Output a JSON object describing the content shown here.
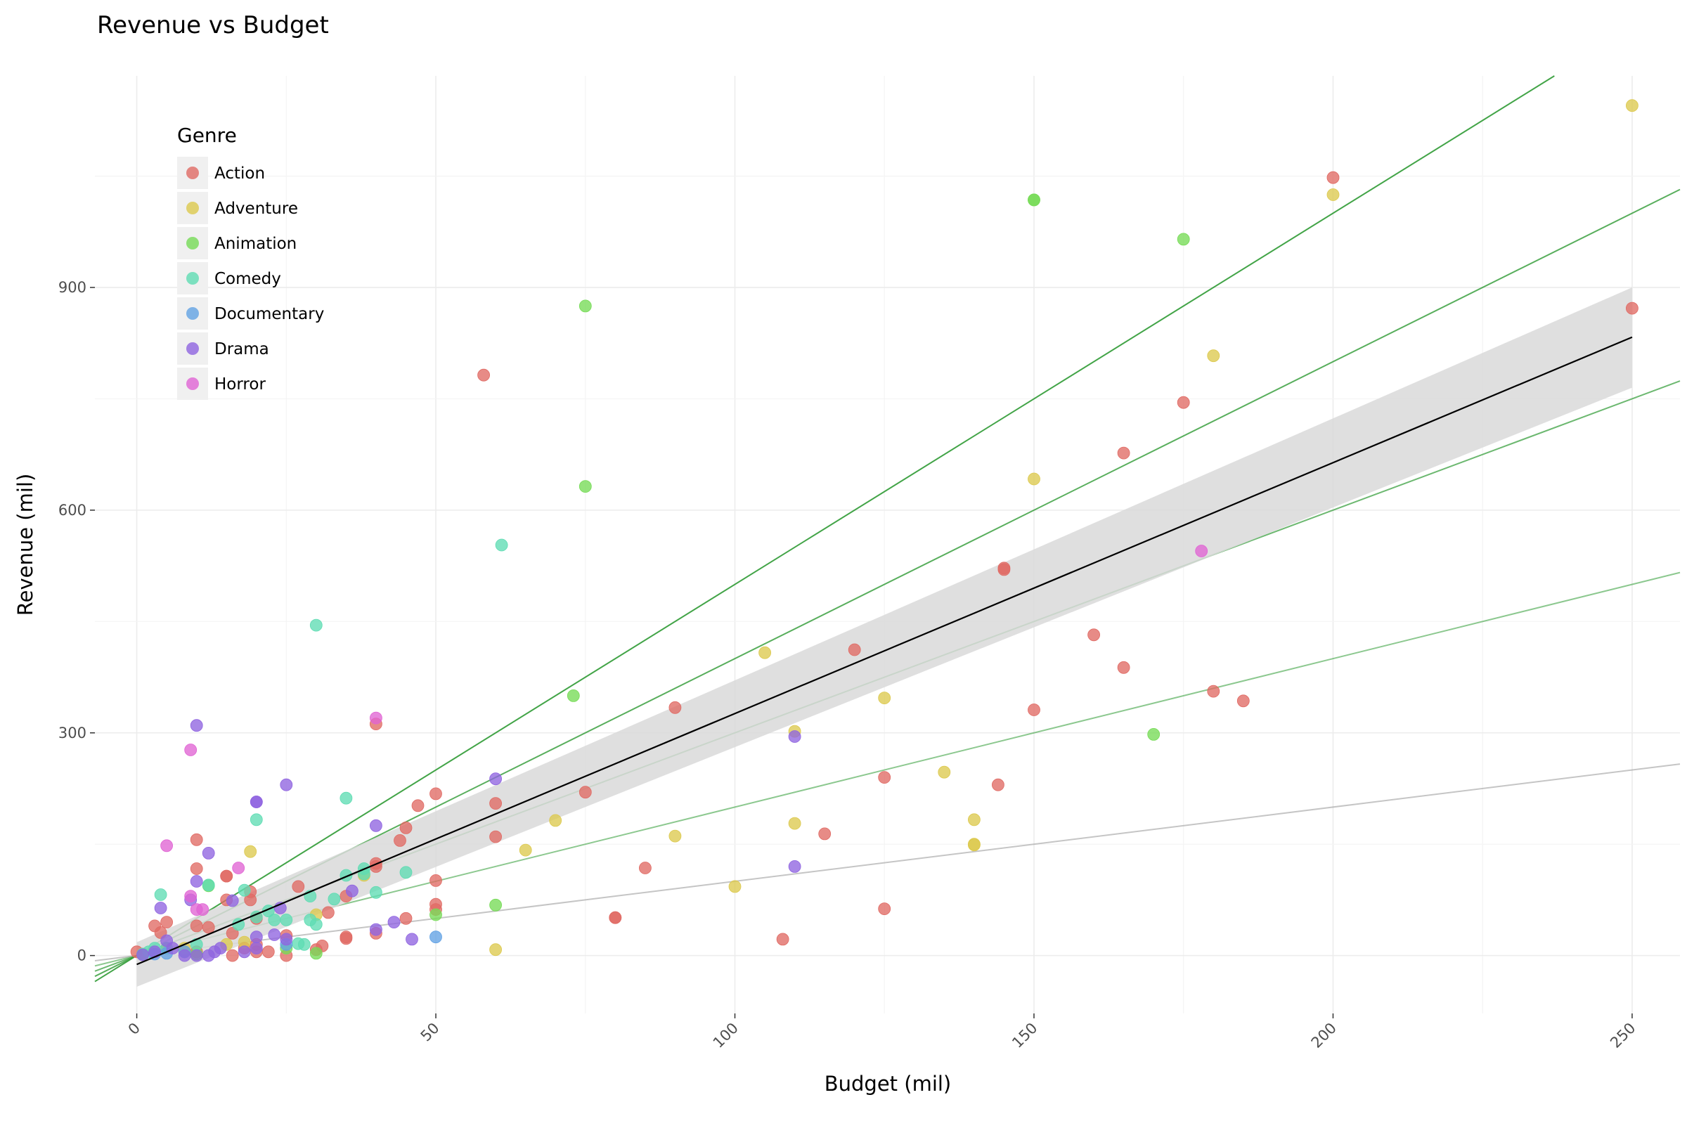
{
  "chart_data": {
    "type": "scatter",
    "title": "Revenue vs Budget",
    "xlabel": "Budget (mil)",
    "ylabel": "Revenue (mil)",
    "xlim": [
      -7,
      258
    ],
    "ylim": [
      -78,
      1185
    ],
    "x_ticks": [
      0,
      50,
      100,
      150,
      200,
      250
    ],
    "y_ticks": [
      0,
      300,
      600,
      900
    ],
    "grid": true,
    "legend": {
      "title": "Genre",
      "position": "top-left"
    },
    "colors": {
      "Action": "#e06a64",
      "Adventure": "#dcc94e",
      "Animation": "#76db56",
      "Comedy": "#5fdcb3",
      "Documentary": "#62a2e4",
      "Drama": "#8f64e0",
      "Horror": "#e064d4",
      "regression_line": "#000000",
      "confidence_band": "#d9d9d9",
      "reference_line_green": "#2e9a33",
      "reference_line_gray": "#bdbdbd"
    },
    "regression": {
      "x_range": [
        0,
        250
      ],
      "slope": 3.38,
      "intercept": -12,
      "band_at_start": [
        -42,
        18
      ],
      "band_at_end": [
        765,
        900
      ]
    },
    "reference_lines": [
      {
        "slope": 5.0,
        "color": "#2e9a33",
        "opacity": 0.9
      },
      {
        "slope": 4.0,
        "color": "#2e9a33",
        "opacity": 0.8
      },
      {
        "slope": 3.0,
        "color": "#2e9a33",
        "opacity": 0.7
      },
      {
        "slope": 2.0,
        "color": "#2e9a33",
        "opacity": 0.55
      },
      {
        "slope": 1.0,
        "color": "#9e9e9e",
        "opacity": 0.6
      }
    ],
    "series": [
      {
        "name": "Action",
        "points": [
          [
            200,
            1048
          ],
          [
            250,
            872
          ],
          [
            58,
            782
          ],
          [
            175,
            745
          ],
          [
            165,
            677
          ],
          [
            145,
            520
          ],
          [
            145,
            522
          ],
          [
            160,
            432
          ],
          [
            120,
            412
          ],
          [
            165,
            388
          ],
          [
            180,
            356
          ],
          [
            185,
            343
          ],
          [
            90,
            334
          ],
          [
            150,
            331
          ],
          [
            40,
            312
          ],
          [
            75,
            220
          ],
          [
            50,
            218
          ],
          [
            47,
            202
          ],
          [
            60,
            205
          ],
          [
            60,
            160
          ],
          [
            45,
            172
          ],
          [
            44,
            155
          ],
          [
            10,
            156
          ],
          [
            115,
            164
          ],
          [
            40,
            124
          ],
          [
            40,
            120
          ],
          [
            35,
            80
          ],
          [
            85,
            118
          ],
          [
            10,
            117
          ],
          [
            15,
            107
          ],
          [
            15,
            107
          ],
          [
            125,
            240
          ],
          [
            144,
            230
          ],
          [
            27,
            93
          ],
          [
            19,
            86
          ],
          [
            15,
            75
          ],
          [
            19,
            75
          ],
          [
            50,
            101
          ],
          [
            32,
            58
          ],
          [
            50,
            69
          ],
          [
            50,
            62
          ],
          [
            125,
            63
          ],
          [
            45,
            50
          ],
          [
            80,
            51
          ],
          [
            80,
            51
          ],
          [
            20,
            50
          ],
          [
            10,
            40
          ],
          [
            3,
            40
          ],
          [
            5,
            45
          ],
          [
            4,
            31
          ],
          [
            12,
            38
          ],
          [
            16,
            30
          ],
          [
            35,
            25
          ],
          [
            35,
            23
          ],
          [
            40,
            30
          ],
          [
            31,
            13
          ],
          [
            30,
            8
          ],
          [
            108,
            22
          ],
          [
            25,
            27
          ],
          [
            25,
            0
          ],
          [
            20,
            15
          ],
          [
            20,
            5
          ],
          [
            22,
            5
          ],
          [
            18,
            10
          ],
          [
            16,
            0
          ],
          [
            10,
            5
          ],
          [
            8,
            5
          ],
          [
            5,
            10
          ],
          [
            0,
            5
          ],
          [
            1,
            2
          ]
        ]
      },
      {
        "name": "Adventure",
        "points": [
          [
            250,
            1145
          ],
          [
            200,
            1025
          ],
          [
            180,
            808
          ],
          [
            150,
            642
          ],
          [
            105,
            408
          ],
          [
            125,
            347
          ],
          [
            110,
            302
          ],
          [
            135,
            247
          ],
          [
            140,
            183
          ],
          [
            70,
            182
          ],
          [
            110,
            178
          ],
          [
            90,
            161
          ],
          [
            140,
            150
          ],
          [
            140,
            149
          ],
          [
            65,
            142
          ],
          [
            19,
            140
          ],
          [
            38,
            108
          ],
          [
            100,
            93
          ],
          [
            30,
            55
          ],
          [
            60,
            8
          ],
          [
            18,
            18
          ],
          [
            15,
            15
          ],
          [
            8,
            10
          ]
        ]
      },
      {
        "name": "Animation",
        "points": [
          [
            150,
            1018
          ],
          [
            150,
            1018
          ],
          [
            175,
            965
          ],
          [
            75,
            875
          ],
          [
            75,
            632
          ],
          [
            73,
            350
          ],
          [
            170,
            298
          ],
          [
            12,
            94
          ],
          [
            60,
            68
          ],
          [
            50,
            55
          ],
          [
            30,
            3
          ],
          [
            25,
            10
          ],
          [
            10,
            2
          ]
        ]
      },
      {
        "name": "Comedy",
        "points": [
          [
            61,
            553
          ],
          [
            30,
            445
          ],
          [
            35,
            212
          ],
          [
            20,
            183
          ],
          [
            45,
            112
          ],
          [
            38,
            117
          ],
          [
            38,
            110
          ],
          [
            35,
            108
          ],
          [
            33,
            76
          ],
          [
            29,
            80
          ],
          [
            40,
            85
          ],
          [
            18,
            88
          ],
          [
            12,
            95
          ],
          [
            4,
            82
          ],
          [
            22,
            60
          ],
          [
            25,
            48
          ],
          [
            23,
            48
          ],
          [
            30,
            42
          ],
          [
            29,
            48
          ],
          [
            20,
            52
          ],
          [
            17,
            42
          ],
          [
            28,
            15
          ],
          [
            27,
            16
          ],
          [
            10,
            15
          ],
          [
            5,
            10
          ],
          [
            3,
            10
          ],
          [
            2,
            5
          ],
          [
            1,
            2
          ]
        ]
      },
      {
        "name": "Documentary",
        "points": [
          [
            50,
            25
          ],
          [
            25,
            15
          ],
          [
            8,
            5
          ],
          [
            5,
            3
          ],
          [
            3,
            2
          ]
        ]
      },
      {
        "name": "Drama",
        "points": [
          [
            10,
            310
          ],
          [
            110,
            295
          ],
          [
            60,
            238
          ],
          [
            25,
            230
          ],
          [
            20,
            207
          ],
          [
            20,
            207
          ],
          [
            40,
            175
          ],
          [
            12,
            138
          ],
          [
            110,
            120
          ],
          [
            10,
            100
          ],
          [
            36,
            87
          ],
          [
            16,
            74
          ],
          [
            24,
            64
          ],
          [
            9,
            75
          ],
          [
            4,
            64
          ],
          [
            40,
            35
          ],
          [
            43,
            45
          ],
          [
            46,
            22
          ],
          [
            23,
            28
          ],
          [
            25,
            22
          ],
          [
            20,
            25
          ],
          [
            20,
            10
          ],
          [
            18,
            5
          ],
          [
            14,
            10
          ],
          [
            13,
            5
          ],
          [
            12,
            0
          ],
          [
            10,
            0
          ],
          [
            8,
            0
          ],
          [
            6,
            10
          ],
          [
            5,
            20
          ],
          [
            3,
            5
          ],
          [
            1,
            1
          ]
        ]
      },
      {
        "name": "Horror",
        "points": [
          [
            178,
            545
          ],
          [
            40,
            320
          ],
          [
            9,
            277
          ],
          [
            5,
            148
          ],
          [
            17,
            118
          ],
          [
            9,
            80
          ],
          [
            10,
            62
          ],
          [
            11,
            62
          ]
        ]
      }
    ]
  }
}
